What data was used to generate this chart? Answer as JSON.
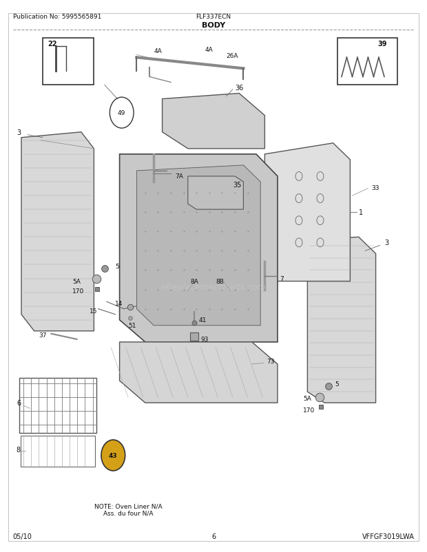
{
  "title": "BODY",
  "pub_no": "Publication No: 5995565891",
  "model": "FLF337ECN",
  "diagram_id": "VFFGF3019LWA",
  "date": "05/10",
  "page": "6",
  "note_line1": "NOTE: Oven Liner N/A",
  "note_line2": "Ass. du four N/A",
  "watermark": "eReplacementParts.com",
  "bg_color": "#ffffff",
  "line_color": "#555555",
  "text_color": "#111111"
}
